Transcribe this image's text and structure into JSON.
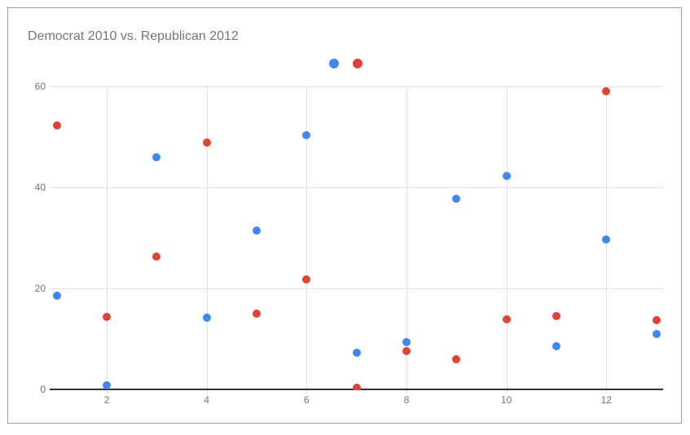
{
  "card": {
    "title": "Democrat 2010 vs. Republican 2012"
  },
  "colors": {
    "series_blue": "#4285F4",
    "series_red": "#DB4437",
    "title_text": "#757575",
    "axis_text": "#757575",
    "gridline": "#E0E0E0",
    "axis_line": "#333333",
    "card_border": "#9E9E9E",
    "background": "#FFFFFF"
  },
  "chart_data": {
    "type": "scatter",
    "title": "Democrat 2010 vs. Republican 2012",
    "xlabel": "",
    "ylabel": "",
    "x_ticks": [
      2,
      4,
      6,
      8,
      10,
      12
    ],
    "y_ticks": [
      0,
      20,
      40,
      60
    ],
    "xlim": [
      0.85,
      13.1
    ],
    "ylim": [
      0,
      66
    ],
    "grid": true,
    "legend": "none",
    "series": [
      {
        "name": "Democrat 2010",
        "color": "#4285F4",
        "points": [
          {
            "x": 1,
            "y": 18.5
          },
          {
            "x": 2,
            "y": 0.8
          },
          {
            "x": 3,
            "y": 46.0
          },
          {
            "x": 4,
            "y": 14.2
          },
          {
            "x": 5,
            "y": 31.5
          },
          {
            "x": 6,
            "y": 50.3
          },
          {
            "x": 6.55,
            "y": 64.5,
            "r": 6
          },
          {
            "x": 7,
            "y": 7.2
          },
          {
            "x": 8,
            "y": 9.3
          },
          {
            "x": 9,
            "y": 37.8
          },
          {
            "x": 10,
            "y": 42.3
          },
          {
            "x": 11,
            "y": 8.5
          },
          {
            "x": 12,
            "y": 29.7
          },
          {
            "x": 13,
            "y": 11.0
          }
        ]
      },
      {
        "name": "Republican 2012",
        "color": "#DB4437",
        "points": [
          {
            "x": 1,
            "y": 52.3
          },
          {
            "x": 2,
            "y": 14.3
          },
          {
            "x": 3,
            "y": 26.2
          },
          {
            "x": 4,
            "y": 48.9
          },
          {
            "x": 5,
            "y": 14.9
          },
          {
            "x": 6,
            "y": 21.7
          },
          {
            "x": 7.03,
            "y": 64.5,
            "r": 6
          },
          {
            "x": 7,
            "y": 0.3
          },
          {
            "x": 8,
            "y": 7.5
          },
          {
            "x": 9,
            "y": 5.9
          },
          {
            "x": 10,
            "y": 13.8
          },
          {
            "x": 11,
            "y": 14.5
          },
          {
            "x": 12,
            "y": 59.0
          },
          {
            "x": 13,
            "y": 13.7
          }
        ]
      }
    ]
  }
}
